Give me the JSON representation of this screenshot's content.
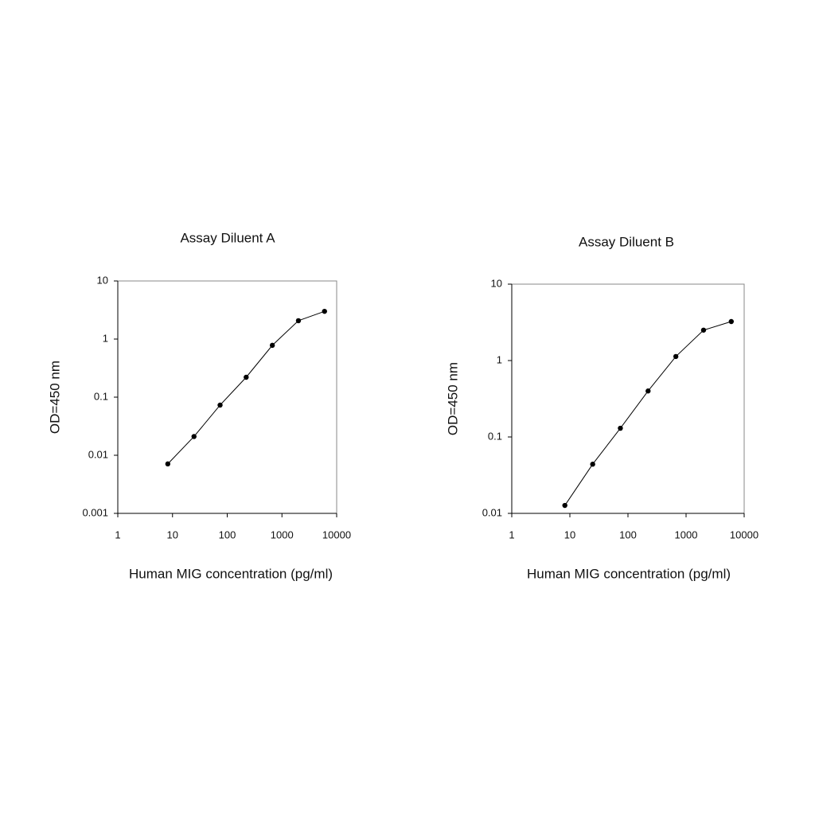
{
  "chart_data": [
    {
      "type": "line",
      "title": "Assay Diluent A",
      "xlabel": "Human MIG concentration (pg/ml)",
      "ylabel": "OD=450 nm",
      "log_x": true,
      "log_y": true,
      "color": "#000000",
      "x": [
        8.2,
        24.7,
        74,
        222,
        667,
        2000,
        6000
      ],
      "values": [
        0.0071,
        0.021,
        0.073,
        0.22,
        0.78,
        2.07,
        3.0
      ],
      "xlim": [
        1,
        10000
      ],
      "xticks": [
        1,
        10,
        100,
        1000,
        10000
      ],
      "ylim": [
        0.001,
        10
      ],
      "yticks": [
        0.001,
        0.01,
        0.1,
        1,
        10
      ]
    },
    {
      "type": "line",
      "title": "Assay Diluent B",
      "xlabel": "Human MIG concentration (pg/ml)",
      "ylabel": "OD=450 nm",
      "log_x": true,
      "log_y": true,
      "color": "#000000",
      "x": [
        8.2,
        24.7,
        74,
        222,
        667,
        2000,
        6000
      ],
      "values": [
        0.0127,
        0.044,
        0.13,
        0.4,
        1.13,
        2.5,
        3.24
      ],
      "xlim": [
        1,
        10000
      ],
      "xticks": [
        1,
        10,
        100,
        1000,
        10000
      ],
      "ylim": [
        0.01,
        10
      ],
      "yticks": [
        0.01,
        0.1,
        1,
        10
      ]
    }
  ]
}
